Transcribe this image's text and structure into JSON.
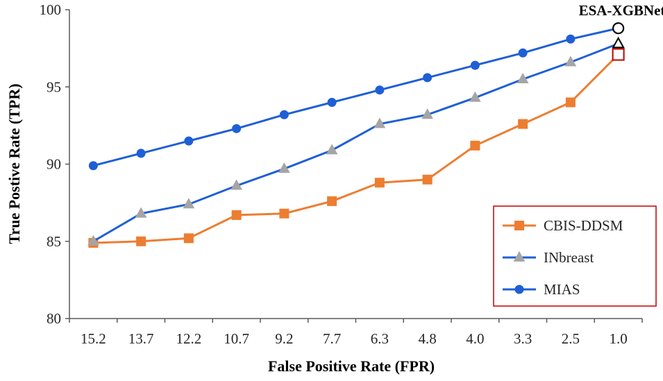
{
  "chart_data": {
    "type": "line",
    "title": "",
    "xlabel": "False Positive Rate (FPR)",
    "ylabel": "True Postive Rate (TPR)",
    "categories": [
      "15.2",
      "13.7",
      "12.2",
      "10.7",
      "9.2",
      "7.7",
      "6.3",
      "4.8",
      "4.0",
      "3.3",
      "2.5",
      "1.0"
    ],
    "ylim": [
      80,
      100
    ],
    "yticks": [
      "80",
      "85",
      "90",
      "95",
      "100"
    ],
    "grid": false,
    "legend_position": "bottom-right",
    "series": [
      {
        "name": "CBIS-DDSM",
        "color": "#ED7D31",
        "marker": "square",
        "values": [
          84.9,
          85.0,
          85.2,
          86.7,
          86.8,
          87.6,
          88.8,
          89.0,
          91.2,
          92.6,
          94.0,
          97.1
        ]
      },
      {
        "name": "INbreast",
        "color": "#A5A5A5",
        "line_color": "#1F5FD6",
        "marker": "triangle",
        "values": [
          85.0,
          86.8,
          87.4,
          88.6,
          89.7,
          90.9,
          92.6,
          93.2,
          94.3,
          95.5,
          96.6,
          97.8
        ]
      },
      {
        "name": "MIAS",
        "color": "#1F5FD6",
        "marker": "circle",
        "values": [
          89.9,
          90.7,
          91.5,
          92.3,
          93.2,
          94.0,
          94.8,
          95.6,
          96.4,
          97.2,
          98.1,
          98.8
        ]
      }
    ],
    "annotation": {
      "text": "ESA-XGBNet",
      "category": "1.0"
    }
  }
}
